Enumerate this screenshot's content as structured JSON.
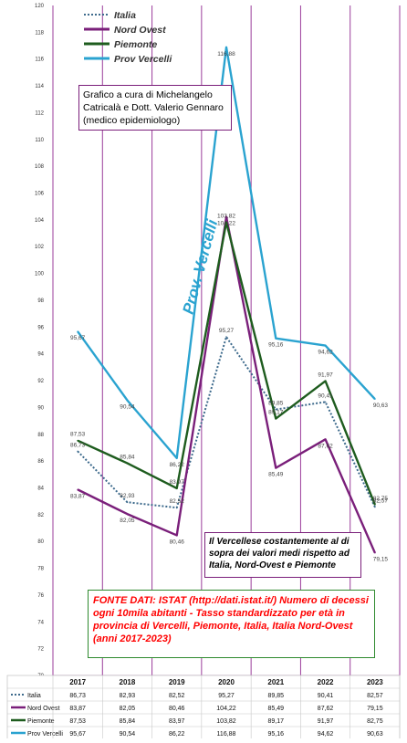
{
  "chart_data": {
    "type": "line",
    "categories": [
      "2017",
      "2018",
      "2019",
      "2020",
      "2021",
      "2022",
      "2023"
    ],
    "ylim": [
      70,
      120
    ],
    "y_ticks": [
      "70",
      "72",
      "74",
      "76",
      "78",
      "80",
      "82",
      "84",
      "86",
      "88",
      "90",
      "92",
      "94",
      "96",
      "98",
      "100",
      "102",
      "104",
      "106",
      "108",
      "110",
      "112",
      "114",
      "116",
      "118",
      "120"
    ],
    "grid": "vertical purple gridlines",
    "legend_position": "top-left",
    "series": [
      {
        "name": "Italia",
        "color": "#3d6a8c",
        "style": "dotted",
        "values": [
          86.73,
          82.93,
          82.52,
          95.27,
          89.85,
          90.41,
          82.57
        ],
        "labels": [
          "86,73",
          "82,93",
          "82,52",
          "95,27",
          "89,85",
          "90,41",
          "82,57"
        ]
      },
      {
        "name": "Nord Ovest",
        "color": "#7a1f7a",
        "style": "solid",
        "values": [
          83.87,
          82.05,
          80.46,
          104.22,
          85.49,
          87.62,
          79.15
        ],
        "labels": [
          "83,87",
          "82,05",
          "80,46",
          "104,22",
          "85,49",
          "87,62",
          "79,15"
        ]
      },
      {
        "name": "Piemonte",
        "color": "#1e5c1e",
        "style": "solid",
        "values": [
          87.53,
          85.84,
          83.97,
          103.82,
          89.17,
          91.97,
          82.75
        ],
        "labels": [
          "87,53",
          "85,84",
          "83,97",
          "103,82",
          "89,17",
          "91,97",
          "82,75"
        ]
      },
      {
        "name": "Prov Vercelli",
        "color": "#2aa3d0",
        "style": "solid",
        "values": [
          95.67,
          90.54,
          86.22,
          116.88,
          95.16,
          94.62,
          90.63
        ],
        "labels": [
          "95,67",
          "90,54",
          "86,22",
          "116,88",
          "95,16",
          "94,62",
          "90,63"
        ]
      }
    ],
    "annotation_rotated": "Prov. Vercelli",
    "credit_text": "Grafico a cura di Michelangelo Catricalà e Dott. Valerio Gennaro (medico epidemiologo)",
    "note_text": "Il Vercellese costantemente al di sopra dei valori medi rispetto ad Italia, Nord-Ovest e Piemonte",
    "source_text": "FONTE DATI: ISTAT (http://dati.istat.it/) Numero di decessi ogni 10mila abitanti - Tasso standardizzato per età in provincia di Vercelli, Piemonte, Italia, Italia Nord-Ovest (anni 2017-2023)"
  }
}
